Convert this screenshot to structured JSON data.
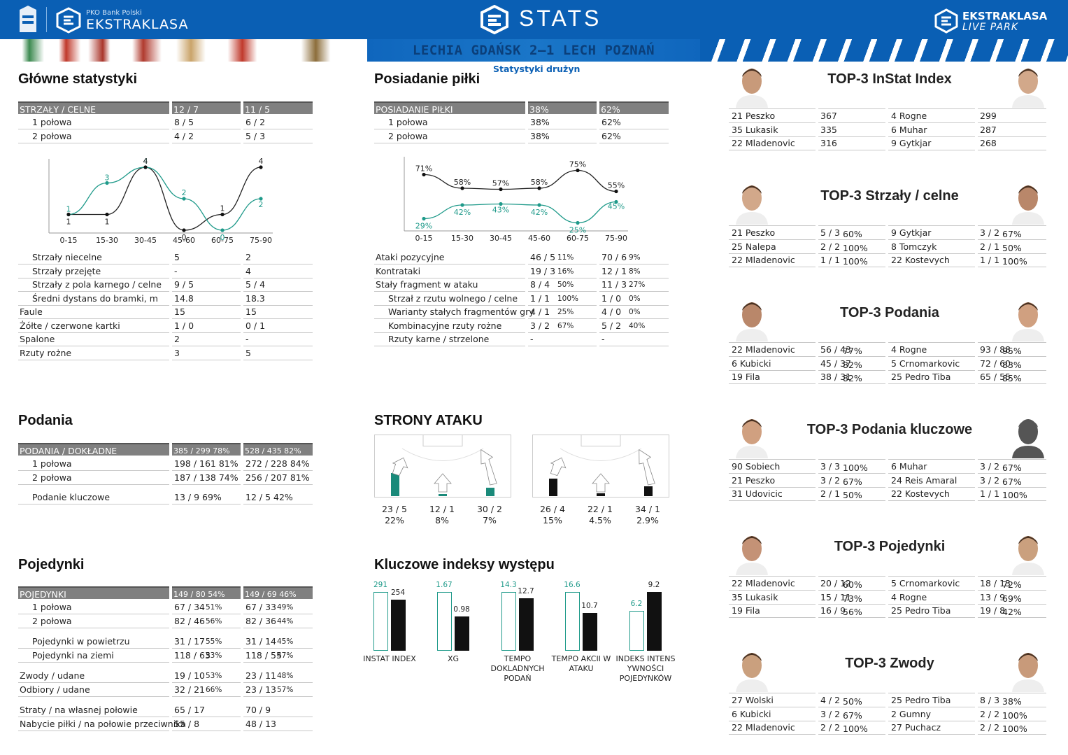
{
  "header": {
    "sponsor": "PKO Bank Polski",
    "league": "EKSTRAKLASA",
    "title": "STATS",
    "right_brand_1": "EKSTRAKLASA",
    "right_brand_2": "LIVE PARK",
    "match": "LECHIA GDAŃSK 2–1  LECH POZNAŃ",
    "subtitle": "Statystyki drużyn"
  },
  "colors": {
    "header_blue": "#0a5fb4",
    "teal": "#1f9a8a",
    "black": "#111111",
    "gray_header": "#808080"
  },
  "main": {
    "title": "Główne statystyki",
    "head": [
      "STRZAŁY / CELNE",
      "12 / 7",
      "11 / 5"
    ],
    "halves": [
      [
        "1 połowa",
        "8 / 5",
        "6 / 2"
      ],
      [
        "2 połowa",
        "4 / 2",
        "5 / 3"
      ]
    ],
    "chart_x": [
      "0-15",
      "15-30",
      "30-45",
      "45-60",
      "60-75",
      "75-90"
    ],
    "chart_teal": [
      "1",
      "3",
      "4",
      "2",
      "0",
      "2"
    ],
    "chart_black": [
      "1",
      "1",
      "4",
      "0",
      "1",
      "4"
    ],
    "rows": [
      [
        "Strzały niecelne",
        "5",
        "2"
      ],
      [
        "Strzały przejęte",
        "-",
        "4"
      ],
      [
        "Strzały z pola karnego / celne",
        "9 / 5",
        "5 / 4"
      ],
      [
        "Średni dystans do bramki, m",
        "14.8",
        "18.3"
      ],
      [
        "Faule",
        "15",
        "15"
      ],
      [
        "Żółte / czerwone kartki",
        "1 / 0",
        "0 / 1"
      ],
      [
        "Spalone",
        "2",
        "-"
      ],
      [
        "Rzuty rożne",
        "3",
        "5"
      ]
    ]
  },
  "possession": {
    "title": "Posiadanie piłki",
    "head": [
      "POSIADANIE PIŁKI",
      "38%",
      "62%"
    ],
    "halves": [
      [
        "1 połowa",
        "38%",
        "62%"
      ],
      [
        "2 połowa",
        "38%",
        "62%"
      ]
    ],
    "chart_teal": [
      "29%",
      "42%",
      "43%",
      "42%",
      "25%",
      "45%"
    ],
    "chart_black": [
      "71%",
      "58%",
      "57%",
      "58%",
      "75%",
      "55%"
    ],
    "rows": [
      [
        "Ataki pozycyjne",
        "46 / 5",
        "11%",
        "70 / 6",
        "9%"
      ],
      [
        "Kontrataki",
        "19 / 3",
        "16%",
        "12 / 1",
        "8%"
      ],
      [
        "Stały fragment w ataku",
        "8 / 4",
        "50%",
        "11 / 3",
        "27%"
      ],
      [
        "Strzał z rzutu wolnego / celne",
        "1 / 1",
        "100%",
        "1 / 0",
        "0%"
      ],
      [
        "Warianty stałych fragmentów gry",
        "4 / 1",
        "25%",
        "4 / 0",
        "0%"
      ],
      [
        "Kombinacyjne rzuty rożne",
        "3 / 2",
        "67%",
        "5 / 2",
        "40%"
      ],
      [
        "Rzuty karne /  strzelone",
        "-",
        "",
        "-",
        ""
      ]
    ]
  },
  "passes": {
    "title": "Podania",
    "head": [
      "PODANIA / DOKŁADNE",
      "385 / 299 78%",
      "528 / 435 82%"
    ],
    "rows": [
      [
        "1 połowa",
        "198 / 161 81%",
        "272 / 228 84%"
      ],
      [
        "2 połowa",
        "187 / 138 74%",
        "256 / 207 81%"
      ],
      [
        "Podanie kluczowe",
        "13 / 9      69%",
        "12 / 5       42%"
      ]
    ]
  },
  "attack": {
    "title": "STRONY ATAKU",
    "teal": [
      [
        "23 / 5",
        "22%"
      ],
      [
        "12 / 1",
        "8%"
      ],
      [
        "30 / 2",
        "7%"
      ]
    ],
    "black": [
      [
        "26 / 4",
        "15%"
      ],
      [
        "22 / 1",
        "4.5%"
      ],
      [
        "34 / 1",
        "2.9%"
      ]
    ],
    "teal_fill": [
      0.33,
      0.03,
      0.12
    ],
    "black_fill": [
      0.25,
      0.04,
      0.14
    ]
  },
  "duels": {
    "title": "Pojedynki",
    "head": [
      "POJEDYNKI",
      "149 / 80 54%",
      "149 / 69 46%"
    ],
    "rows": [
      [
        "1 połowa",
        "67 / 34",
        "51%",
        "67 / 33",
        "49%"
      ],
      [
        "2 połowa",
        "82 / 46",
        "56%",
        "82 / 36",
        "44%"
      ],
      [
        "Pojedynki w powietrzu",
        "31 / 17",
        "55%",
        "31 / 14",
        "45%"
      ],
      [
        "Pojedynki na ziemi",
        "118 / 63",
        "53%",
        "118 / 55",
        "47%"
      ],
      [
        "Zwody / udane",
        "19 / 10",
        "53%",
        "23 / 11",
        "48%"
      ],
      [
        "Odbiory / udane",
        "32 / 21",
        "66%",
        "23 / 13",
        "57%"
      ],
      [
        "Straty / na własnej połowie",
        "65 / 17",
        "",
        "70 / 9",
        ""
      ],
      [
        "Nabycie piłki / na połowie przeciwnika",
        "55 / 8",
        "",
        "48 / 13",
        ""
      ]
    ]
  },
  "kpi": {
    "title": "Kluczowe indeksy występu",
    "items": [
      {
        "label": "INSTAT INDEX",
        "teal": "291",
        "black": "254",
        "tv": 291,
        "bv": 254,
        "max": 291
      },
      {
        "label": "XG",
        "teal": "1.67",
        "black": "0.98",
        "tv": 1.67,
        "bv": 0.98,
        "max": 1.67
      },
      {
        "label": "TEMPO DOKLADNYCH PODAŃ",
        "teal": "14.3",
        "black": "12.7",
        "tv": 14.3,
        "bv": 12.7,
        "max": 14.3
      },
      {
        "label": "TEMPO AKCII W ATAKU",
        "teal": "16.6",
        "black": "10.7",
        "tv": 16.6,
        "bv": 10.7,
        "max": 16.6
      },
      {
        "label": "INDEKS INTENS YWNOŚCI POJEDYNKÓW",
        "teal": "6.2",
        "black": "9.2",
        "tv": 6.2,
        "bv": 9.2,
        "max": 9.2
      }
    ]
  },
  "top3": [
    {
      "title": "TOP-3 InStat Index",
      "left": [
        [
          "21 Peszko",
          "367"
        ],
        [
          "35 Lukasik",
          "335"
        ],
        [
          "22 Mladenovic",
          "316"
        ]
      ],
      "right": [
        [
          "4  Rogne",
          "299"
        ],
        [
          "6  Muhar",
          "287"
        ],
        [
          "9  Gytkjar",
          "268"
        ]
      ]
    },
    {
      "title": "TOP-3 Strzały / celne",
      "left": [
        [
          "21 Peszko",
          "5 / 3",
          "60%"
        ],
        [
          "25 Nalepa",
          "2 / 2",
          "100%"
        ],
        [
          "22 Mladenovic",
          "1 / 1",
          "100%"
        ]
      ],
      "right": [
        [
          "9  Gytkjar",
          "3 / 2",
          "67%"
        ],
        [
          "8  Tomczyk",
          "2 / 1",
          "50%"
        ],
        [
          "22 Kostevych",
          "1 / 1",
          "100%"
        ]
      ]
    },
    {
      "title": "TOP-3 Podania",
      "left": [
        [
          "22 Mladenovic",
          "56 / 43",
          "77%"
        ],
        [
          "6  Kubicki",
          "45 / 37",
          "82%"
        ],
        [
          "19 Fila",
          "38 / 31",
          "82%"
        ]
      ],
      "right": [
        [
          "4  Rogne",
          "93 / 88",
          "95%"
        ],
        [
          "5  Crnomarkovic",
          "72 / 60",
          "83%"
        ],
        [
          "25 Pedro Tiba",
          "65 / 55",
          "85%"
        ]
      ]
    },
    {
      "title": "TOP-3 Podania kluczowe",
      "left": [
        [
          "90 Sobiech",
          "3 / 3",
          "100%"
        ],
        [
          "21 Peszko",
          "3 / 2",
          "67%"
        ],
        [
          "31 Udovicic",
          "2 / 1",
          "50%"
        ]
      ],
      "right": [
        [
          "6  Muhar",
          "3 / 2",
          "67%"
        ],
        [
          "24 Reis Amaral",
          "3 / 2",
          "67%"
        ],
        [
          "22 Kostevych",
          "1 / 1",
          "100%"
        ]
      ]
    },
    {
      "title": "TOP-3 Pojedynki",
      "left": [
        [
          "22 Mladenovic",
          "20 / 12",
          "60%"
        ],
        [
          "35 Lukasik",
          "15 / 11",
          "73%"
        ],
        [
          "19 Fila",
          "16 / 9",
          "56%"
        ]
      ],
      "right": [
        [
          "5  Crnomarkovic",
          "18 / 13",
          "72%"
        ],
        [
          "4  Rogne",
          "13 / 9",
          "69%"
        ],
        [
          "25 Pedro Tiba",
          "19 / 8",
          "42%"
        ]
      ]
    },
    {
      "title": "TOP-3 Zwody",
      "left": [
        [
          "27 Wolski",
          "4 / 2",
          "50%"
        ],
        [
          "6  Kubicki",
          "3 / 2",
          "67%"
        ],
        [
          "22 Mladenovic",
          "2 / 2",
          "100%"
        ]
      ],
      "right": [
        [
          "25 Pedro Tiba",
          "8 / 3",
          "38%"
        ],
        [
          "2  Gumny",
          "2 / 2",
          "100%"
        ],
        [
          "27 Puchacz",
          "2 / 2",
          "100%"
        ]
      ]
    }
  ]
}
